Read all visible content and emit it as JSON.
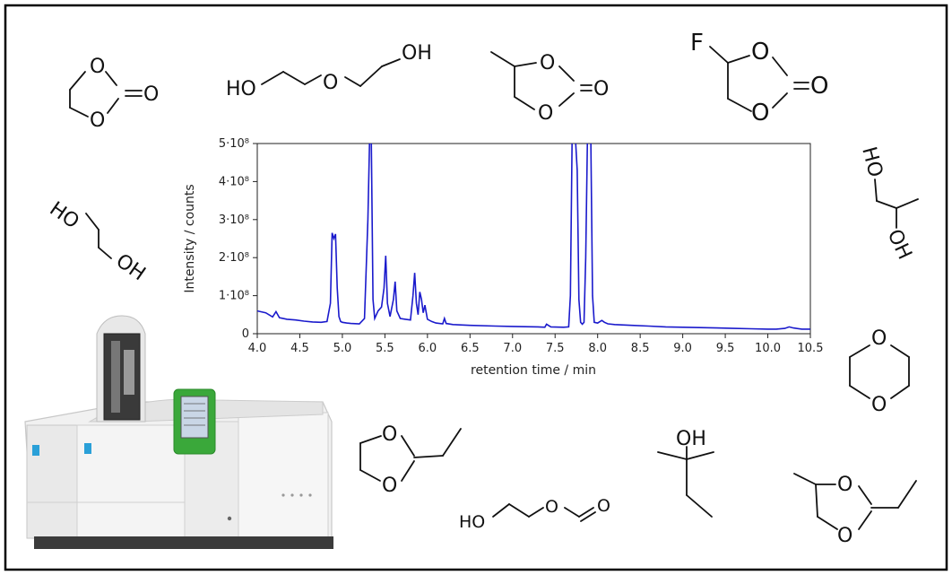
{
  "chart_data": {
    "type": "line",
    "title": "",
    "xlabel": "retention time / min",
    "ylabel": "Intensity / counts",
    "xlim": [
      4.0,
      10.5
    ],
    "ylim": [
      0,
      500000000
    ],
    "x_ticks": [
      "4.0",
      "4.5",
      "5.0",
      "5.5",
      "6.0",
      "6.5",
      "7.0",
      "7.5",
      "8.0",
      "8.5",
      "9.0",
      "9.5",
      "10.0",
      "10.5"
    ],
    "y_ticks": [
      "0",
      "1·10⁸",
      "2·10⁸",
      "3·10⁸",
      "4·10⁸",
      "5·10⁸"
    ],
    "grid": false,
    "line_color": "#1a1acc",
    "series": [
      {
        "x": [
          4.0,
          4.1,
          4.18,
          4.22,
          4.26,
          4.35,
          4.45,
          4.55,
          4.65,
          4.75,
          4.82,
          4.86,
          4.88,
          4.9,
          4.92,
          4.94,
          4.96,
          4.98,
          5.0,
          5.05,
          5.1,
          5.2,
          5.26,
          5.3,
          5.32,
          5.34,
          5.36,
          5.38,
          5.42,
          5.46,
          5.49,
          5.51,
          5.53,
          5.56,
          5.6,
          5.62,
          5.64,
          5.68,
          5.74,
          5.8,
          5.83,
          5.85,
          5.87,
          5.89,
          5.91,
          5.93,
          5.95,
          5.97,
          6.0,
          6.05,
          6.1,
          6.18,
          6.2,
          6.22,
          6.3,
          6.5,
          6.8,
          7.0,
          7.3,
          7.38,
          7.4,
          7.45,
          7.6,
          7.66,
          7.68,
          7.7,
          7.72,
          7.74,
          7.76,
          7.78,
          7.8,
          7.82,
          7.84,
          7.86,
          7.88,
          7.9,
          7.92,
          7.94,
          7.96,
          8.0,
          8.05,
          8.08,
          8.12,
          8.2,
          8.4,
          8.6,
          8.8,
          9.0,
          9.2,
          9.4,
          9.6,
          9.8,
          10.0,
          10.1,
          10.2,
          10.25,
          10.3,
          10.4,
          10.5
        ],
        "y": [
          60000000,
          55000000,
          44000000,
          58000000,
          42000000,
          38000000,
          36000000,
          33000000,
          31000000,
          30000000,
          32000000,
          80000000,
          265000000,
          250000000,
          262000000,
          120000000,
          45000000,
          32000000,
          30000000,
          28000000,
          27000000,
          26000000,
          40000000,
          300000000,
          510000000,
          510000000,
          90000000,
          40000000,
          60000000,
          70000000,
          120000000,
          205000000,
          80000000,
          45000000,
          90000000,
          137000000,
          60000000,
          40000000,
          38000000,
          36000000,
          100000000,
          160000000,
          80000000,
          50000000,
          110000000,
          90000000,
          55000000,
          75000000,
          38000000,
          32000000,
          28000000,
          26000000,
          40000000,
          27000000,
          24000000,
          22000000,
          20000000,
          19000000,
          18000000,
          17000000,
          25000000,
          18000000,
          17000000,
          18000000,
          100000000,
          510000000,
          510000000,
          510000000,
          430000000,
          90000000,
          30000000,
          25000000,
          30000000,
          200000000,
          510000000,
          510000000,
          510000000,
          100000000,
          30000000,
          28000000,
          35000000,
          30000000,
          26000000,
          24000000,
          22000000,
          20000000,
          18000000,
          17000000,
          16000000,
          15000000,
          14000000,
          13000000,
          12000000,
          12000000,
          14000000,
          18000000,
          15000000,
          12000000,
          12000000
        ]
      }
    ]
  },
  "molecules": {
    "ethylene_carbonate": {
      "O1": "O",
      "O2": "O",
      "O3": "O"
    },
    "diethylene_glycol": {
      "ho": "HO",
      "o": "O",
      "oh": "OH"
    },
    "propylene_carbonate": {
      "O1": "O",
      "O2": "O",
      "O3": "O"
    },
    "fluoroethylene_carbonate": {
      "f": "F",
      "O1": "O",
      "O2": "O",
      "O3": "O"
    },
    "ethylene_glycol": {
      "ho": "HO",
      "oh": "OH"
    },
    "propylene_glycol": {
      "ho": "HO",
      "oh": "OH"
    },
    "dioxane": {
      "O1": "O",
      "O2": "O"
    },
    "ethyl_dioxolane": {
      "O1": "O",
      "O2": "O"
    },
    "hydroxyethyl_formate": {
      "ho": "HO",
      "o": "O",
      "o2": "O"
    },
    "tert_amyl_alcohol": {
      "oh": "OH"
    },
    "ethyl_methyl_dioxolane": {
      "O1": "O",
      "O2": "O"
    }
  },
  "instrument": {
    "name": "gas-chromatograph"
  }
}
